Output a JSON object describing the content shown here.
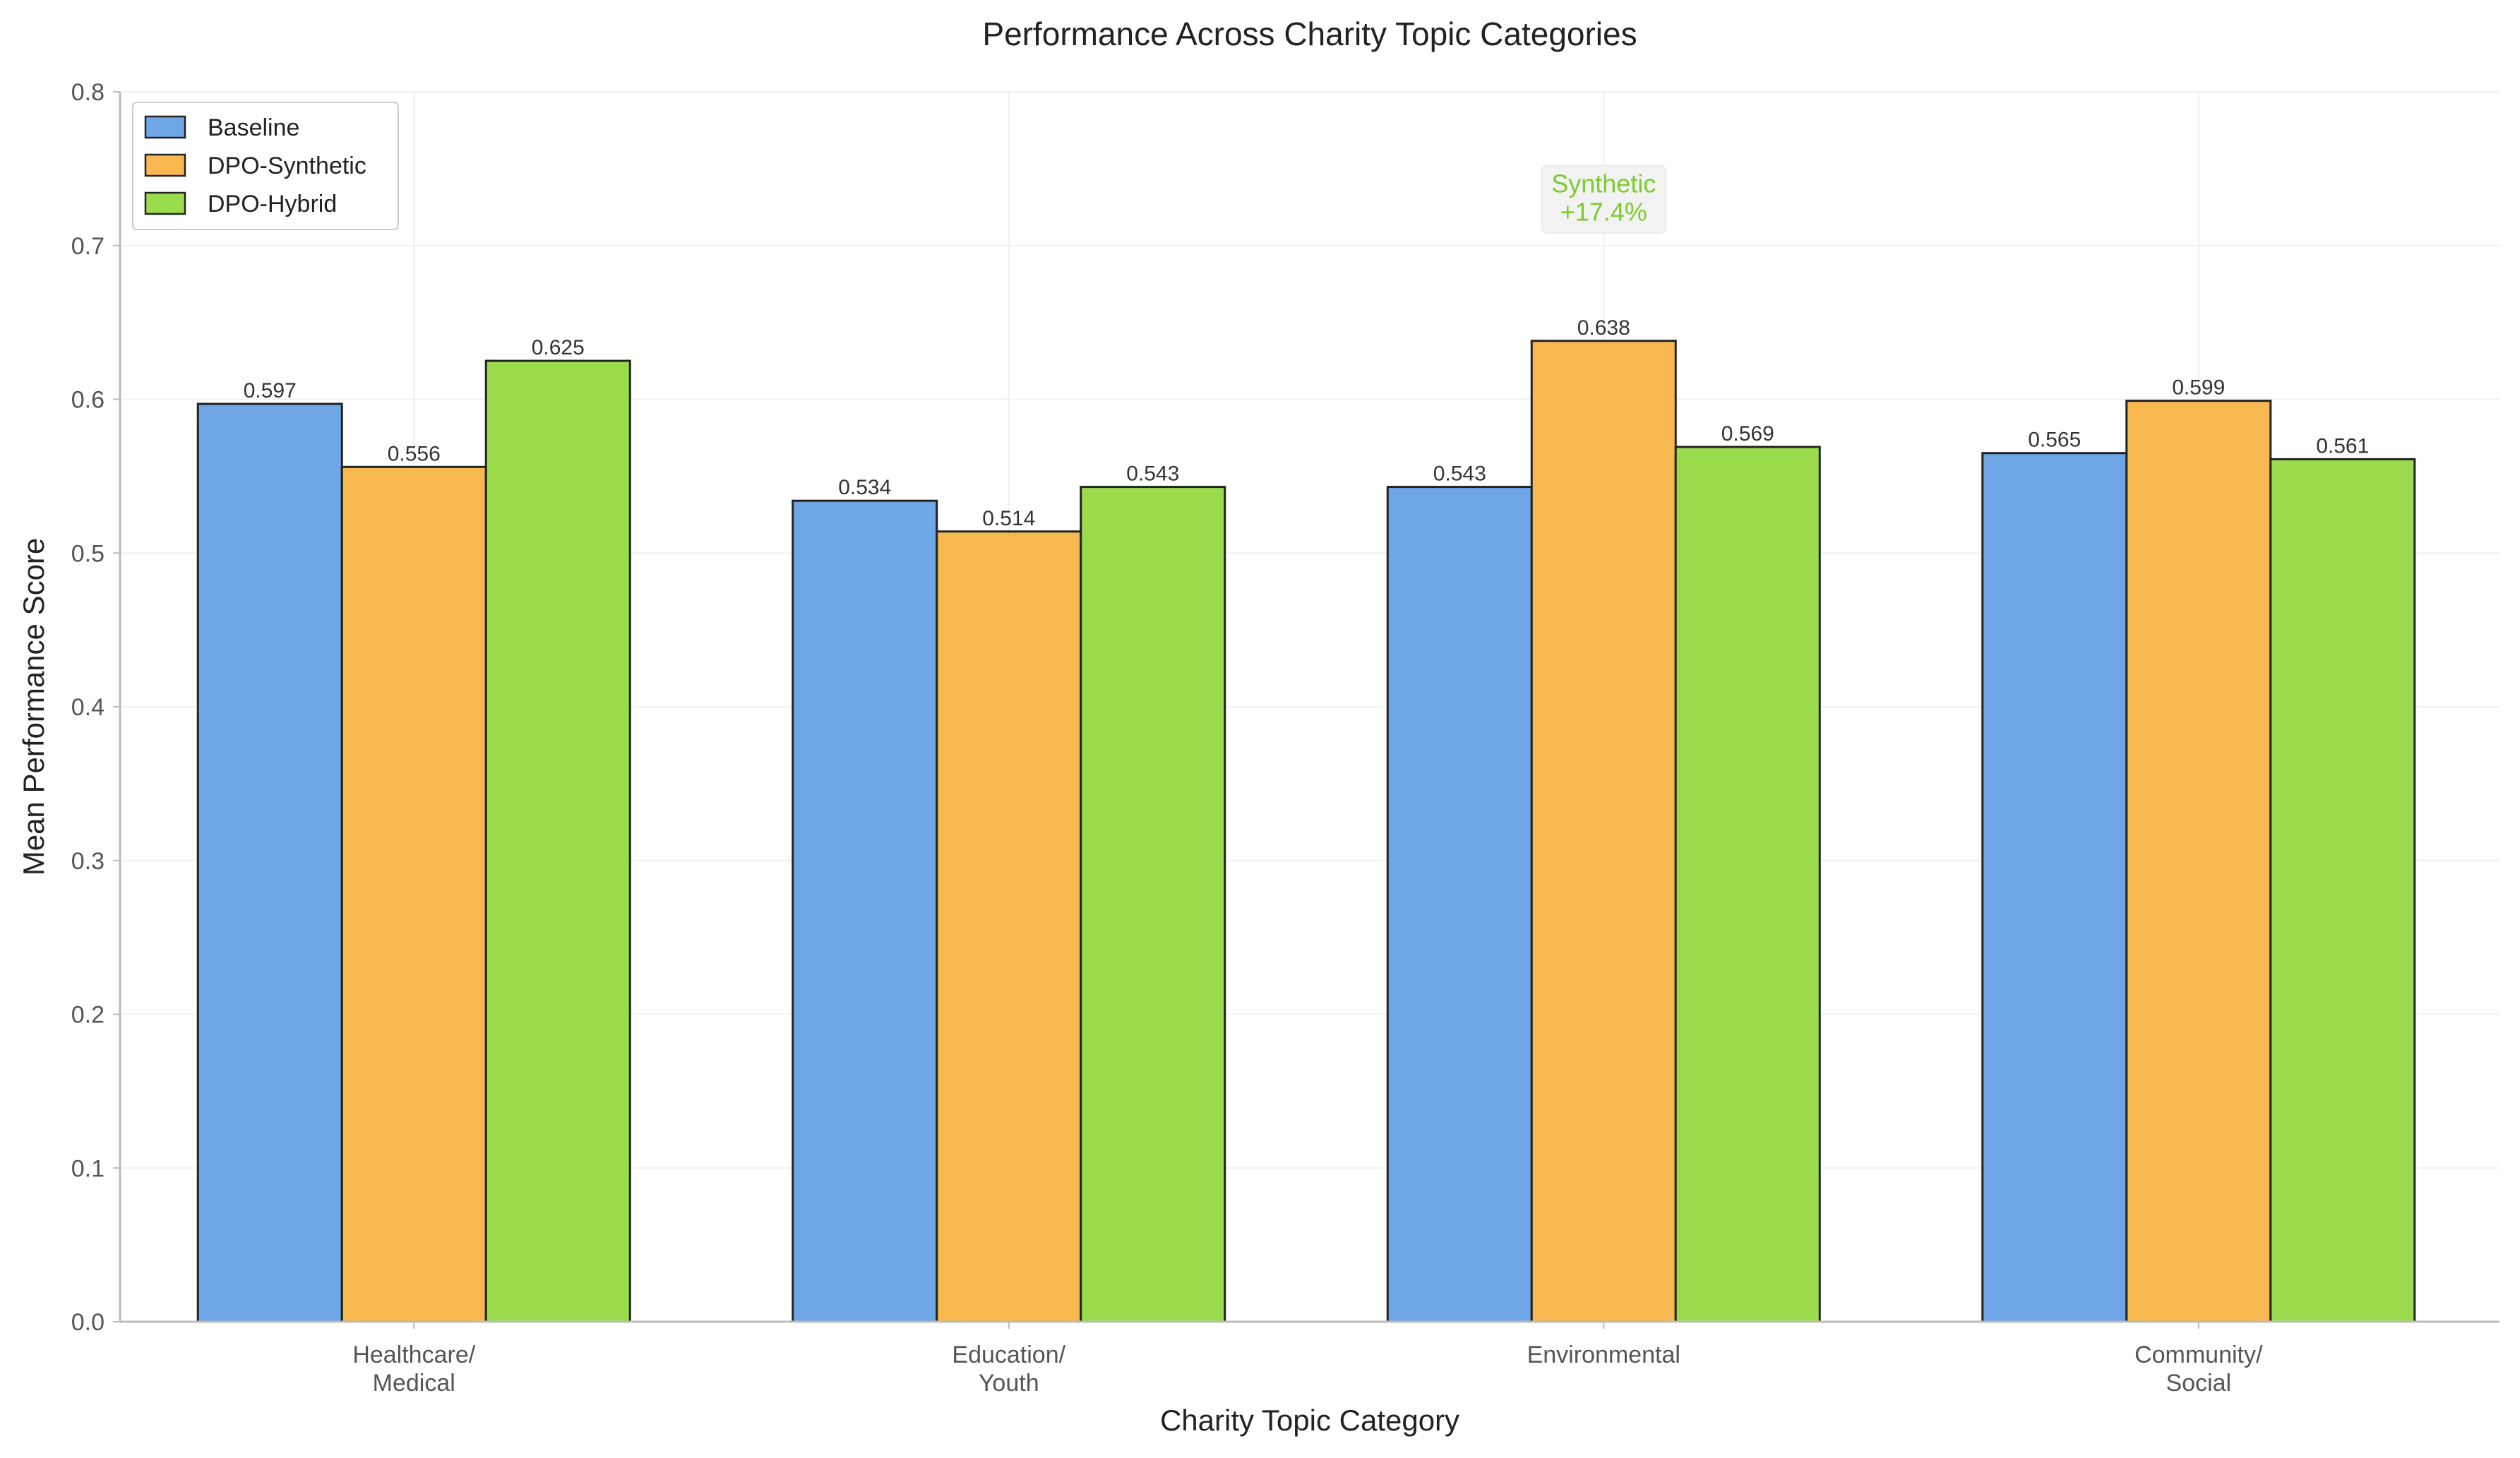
{
  "chart_data": {
    "type": "bar",
    "title": "Performance Across Charity Topic Categories",
    "xlabel": "Charity Topic Category",
    "ylabel": "Mean Performance Score",
    "ylim": [
      0,
      0.8
    ],
    "yticks": [
      "0.0",
      "0.1",
      "0.2",
      "0.3",
      "0.4",
      "0.5",
      "0.6",
      "0.7",
      "0.8"
    ],
    "categories": [
      [
        "Healthcare/",
        "Medical"
      ],
      [
        "Education/",
        "Youth"
      ],
      [
        "Environmental"
      ],
      [
        "Community/",
        "Social"
      ]
    ],
    "series": [
      {
        "name": "Baseline",
        "color": "#6fa6e6",
        "values": [
          0.597,
          0.534,
          0.543,
          0.565
        ],
        "labels": [
          "0.597",
          "0.534",
          "0.543",
          "0.565"
        ]
      },
      {
        "name": "DPO-Synthetic",
        "color": "#f7b84f",
        "values": [
          0.556,
          0.514,
          0.638,
          0.599
        ],
        "labels": [
          "0.556",
          "0.514",
          "0.638",
          "0.599"
        ]
      },
      {
        "name": "DPO-Hybrid",
        "color": "#9adc4c",
        "values": [
          0.625,
          0.543,
          0.569,
          0.561
        ],
        "labels": [
          "0.625",
          "0.543",
          "0.569",
          "0.561"
        ]
      }
    ],
    "grid": true,
    "legend_position": "top-left",
    "annotation": {
      "category_index": 2,
      "y": 0.73,
      "lines": [
        "Synthetic",
        "+17.4%"
      ],
      "color": "#7ccc2c"
    }
  }
}
